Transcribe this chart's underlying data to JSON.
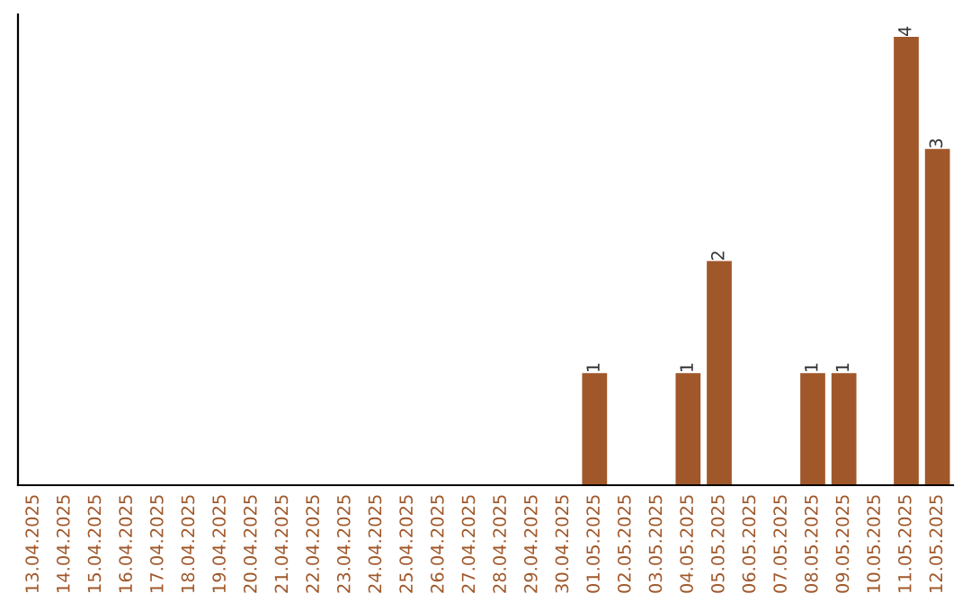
{
  "chart_data": {
    "type": "bar",
    "categories": [
      "13.04.2025",
      "14.04.2025",
      "15.04.2025",
      "16.04.2025",
      "17.04.2025",
      "18.04.2025",
      "19.04.2025",
      "20.04.2025",
      "21.04.2025",
      "22.04.2025",
      "23.04.2025",
      "24.04.2025",
      "25.04.2025",
      "26.04.2025",
      "27.04.2025",
      "28.04.2025",
      "29.04.2025",
      "30.04.2025",
      "01.05.2025",
      "02.05.2025",
      "03.05.2025",
      "04.05.2025",
      "05.05.2025",
      "06.05.2025",
      "07.05.2025",
      "08.05.2025",
      "09.05.2025",
      "10.05.2025",
      "11.05.2025",
      "12.05.2025"
    ],
    "values": [
      null,
      null,
      null,
      null,
      null,
      null,
      null,
      null,
      null,
      null,
      null,
      null,
      null,
      null,
      null,
      null,
      null,
      null,
      1,
      null,
      null,
      1,
      2,
      null,
      null,
      1,
      1,
      null,
      4,
      3
    ],
    "data_labels": true,
    "color": "#a0582a",
    "tick_labels": "x",
    "grid": false,
    "legend": false
  }
}
